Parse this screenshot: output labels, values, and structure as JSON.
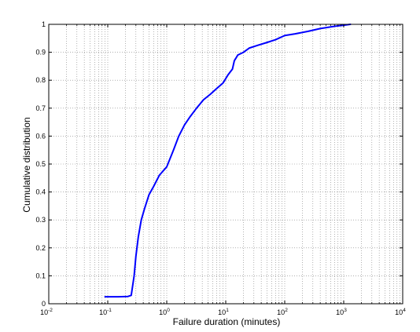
{
  "chart_data": {
    "type": "line",
    "title": "",
    "xlabel": "Failure duration (minutes)",
    "ylabel": "Cumulative distribution",
    "xscale": "log",
    "xlim": [
      0.01,
      10000
    ],
    "ylim": [
      0,
      1
    ],
    "x_ticks": [
      {
        "base": "10",
        "exp": "-2"
      },
      {
        "base": "10",
        "exp": "-1"
      },
      {
        "base": "10",
        "exp": "0"
      },
      {
        "base": "10",
        "exp": "1"
      },
      {
        "base": "10",
        "exp": "2"
      },
      {
        "base": "10",
        "exp": "3"
      },
      {
        "base": "10",
        "exp": "4"
      }
    ],
    "y_ticks": [
      "0",
      "0.1",
      "0.2",
      "0.3",
      "0.4",
      "0.5",
      "0.6",
      "0.7",
      "0.8",
      "0.9",
      "1"
    ],
    "grid": true,
    "line_color": "#0000ff",
    "series": [
      {
        "x": [
          0.09,
          0.15,
          0.22,
          0.25,
          0.28,
          0.3,
          0.33,
          0.37,
          0.42,
          0.5,
          0.6,
          0.75,
          1.0,
          1.3,
          1.6,
          2.0,
          2.5,
          3.2,
          4.2,
          5.5,
          7.0,
          9.0,
          11.0,
          13.0,
          14.0,
          15.0,
          16.0,
          20.0,
          25.0,
          35.0,
          50.0,
          70.0,
          100.0,
          150.0,
          250.0,
          400.0,
          700.0,
          1000.0,
          1300.0
        ],
        "y": [
          0.025,
          0.025,
          0.026,
          0.03,
          0.1,
          0.17,
          0.24,
          0.3,
          0.34,
          0.39,
          0.42,
          0.46,
          0.49,
          0.55,
          0.6,
          0.64,
          0.67,
          0.7,
          0.73,
          0.75,
          0.77,
          0.79,
          0.82,
          0.84,
          0.87,
          0.88,
          0.89,
          0.9,
          0.915,
          0.925,
          0.935,
          0.945,
          0.96,
          0.966,
          0.975,
          0.985,
          0.993,
          0.997,
          1.0
        ]
      }
    ]
  }
}
